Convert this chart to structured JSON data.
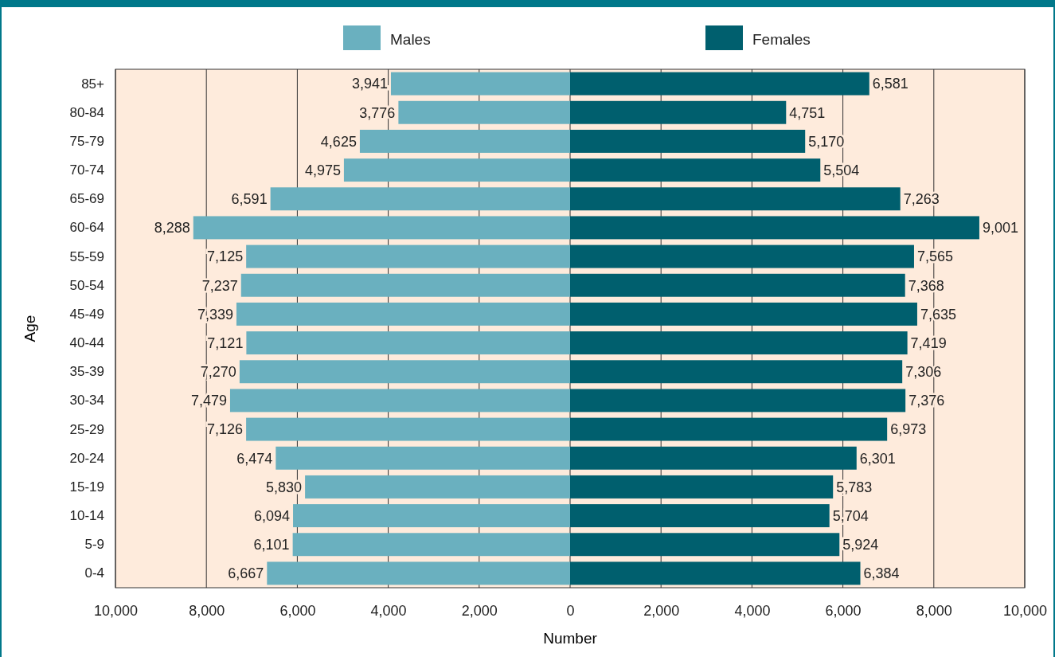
{
  "chart_data": {
    "type": "bar",
    "orientation": "horizontal",
    "xlabel": "Number",
    "ylabel": "Age",
    "categories": [
      "85+",
      "80-84",
      "75-79",
      "70-74",
      "65-69",
      "60-64",
      "55-59",
      "50-54",
      "45-49",
      "40-44",
      "35-39",
      "30-34",
      "25-29",
      "20-24",
      "15-19",
      "10-14",
      "5-9",
      "0-4"
    ],
    "series": [
      {
        "name": "Males",
        "color": "#6ab0bf",
        "base": [
          -3941,
          -3776,
          -4625,
          -4975,
          -6591,
          -8288,
          -7125,
          -7237,
          -7339,
          -7121,
          -7270,
          -7479,
          -7126,
          -6474,
          -5830,
          -6094,
          -6101,
          -6667
        ],
        "values": [
          3941,
          3776,
          4625,
          4975,
          6591,
          8288,
          7125,
          7237,
          7339,
          7121,
          7270,
          7479,
          7126,
          6474,
          5830,
          6094,
          6101,
          6667
        ],
        "value_labels": [
          "3,941",
          "3,776",
          "4,625",
          "4,975",
          "6,591",
          "8,288",
          "7,125",
          "7,237",
          "7,339",
          "7,121",
          "7,270",
          "7,479",
          "7,126",
          "6,474",
          "5,830",
          "6,094",
          "6,101",
          "6,667"
        ]
      },
      {
        "name": "Females",
        "color": "#005f6e",
        "values": [
          6581,
          4751,
          5170,
          5504,
          7263,
          9001,
          7565,
          7368,
          7635,
          7419,
          7306,
          7376,
          6973,
          6301,
          5783,
          5704,
          5924,
          6384
        ],
        "value_labels": [
          "6,581",
          "4,751",
          "5,170",
          "5,504",
          "7,263",
          "9,001",
          "7,565",
          "7,368",
          "7,635",
          "7,419",
          "7,306",
          "7,376",
          "6,973",
          "6,301",
          "5,783",
          "5,704",
          "5,924",
          "6,384"
        ]
      }
    ],
    "xlim": [
      -10000,
      10000
    ],
    "xticks": [
      {
        "value": -10000,
        "label": "10,000"
      },
      {
        "value": -8000,
        "label": "8,000"
      },
      {
        "value": -6000,
        "label": "6,000"
      },
      {
        "value": -4000,
        "label": "4,000"
      },
      {
        "value": -2000,
        "label": "2,000"
      },
      0,
      {
        "value": 2000,
        "label": "2,000"
      },
      {
        "value": 4000,
        "label": "4,000"
      },
      {
        "value": 6000,
        "label": "6,000"
      },
      {
        "value": 8000,
        "label": "8,000"
      },
      {
        "value": 10000,
        "label": "10,000"
      }
    ],
    "grid": "x",
    "legend": "top"
  }
}
